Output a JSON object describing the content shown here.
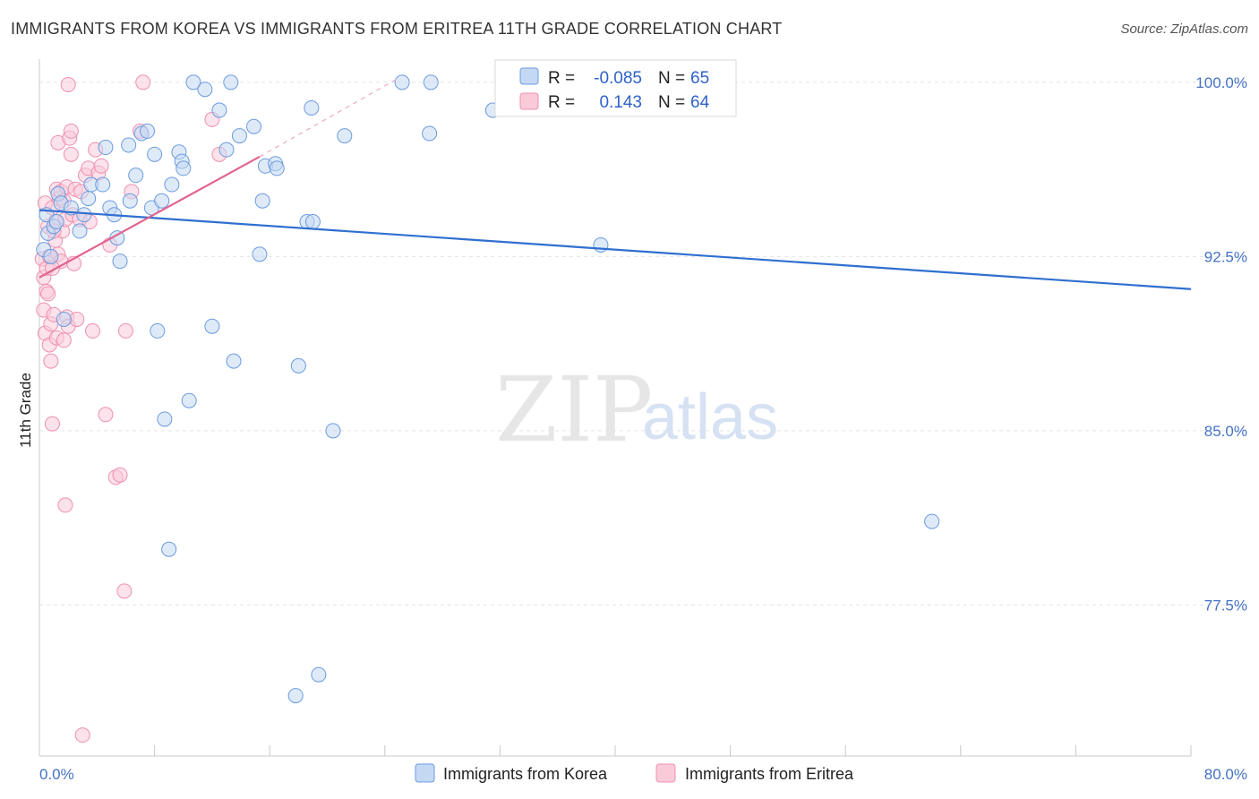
{
  "title": "IMMIGRANTS FROM KOREA VS IMMIGRANTS FROM ERITREA 11TH GRADE CORRELATION CHART",
  "source": "Source: ZipAtlas.com",
  "watermark": {
    "zip": "ZIP",
    "atlas": "atlas"
  },
  "legend": {
    "rows": [
      {
        "r_label": "R =",
        "r_value": "-0.085",
        "n_label": "N =",
        "n_value": "65",
        "color": "#a9c4ec"
      },
      {
        "r_label": "R =",
        "r_value": "0.143",
        "n_label": "N =",
        "n_value": "64",
        "color": "#f6b6c9"
      }
    ]
  },
  "bottom_legend": {
    "korea": "Immigrants from Korea",
    "eritrea": "Immigrants from Eritrea"
  },
  "chart_data": {
    "type": "scatter",
    "title": "IMMIGRANTS FROM KOREA VS IMMIGRANTS FROM ERITREA 11TH GRADE CORRELATION CHART",
    "xlabel": "",
    "ylabel": "11th Grade",
    "xlim": [
      0,
      80
    ],
    "ylim": [
      71,
      101
    ],
    "x_tick_labels": [
      "0.0%",
      "80.0%"
    ],
    "y_ticks": [
      77.5,
      85.0,
      92.5,
      100.0
    ],
    "y_tick_labels": [
      "77.5%",
      "85.0%",
      "92.5%",
      "100.0%"
    ],
    "grid": true,
    "legend_position": "top-center",
    "colors": {
      "korea": "#6a9be0",
      "korea_fill": "#c5d8f3",
      "eritrea": "#ef8fb0",
      "eritrea_fill": "#f9cbd9",
      "korea_line": "#2f6fd0",
      "eritrea_line": "#e0648e"
    },
    "series": [
      {
        "name": "Immigrants from Korea",
        "R": -0.085,
        "N": 65,
        "trend": {
          "x": [
            0,
            80
          ],
          "y": [
            94.5,
            91.1
          ]
        },
        "points": [
          [
            0.3,
            92.8
          ],
          [
            0.5,
            94.3
          ],
          [
            0.6,
            93.5
          ],
          [
            0.8,
            92.5
          ],
          [
            1.0,
            93.8
          ],
          [
            1.2,
            94.0
          ],
          [
            1.3,
            95.2
          ],
          [
            1.5,
            94.8
          ],
          [
            1.7,
            89.8
          ],
          [
            2.2,
            94.6
          ],
          [
            2.8,
            93.6
          ],
          [
            3.1,
            94.3
          ],
          [
            3.4,
            95.0
          ],
          [
            3.6,
            95.6
          ],
          [
            4.4,
            95.6
          ],
          [
            4.6,
            97.2
          ],
          [
            4.9,
            94.6
          ],
          [
            5.2,
            94.3
          ],
          [
            5.4,
            93.3
          ],
          [
            5.6,
            92.3
          ],
          [
            6.2,
            97.3
          ],
          [
            6.3,
            94.9
          ],
          [
            6.7,
            96.0
          ],
          [
            7.1,
            97.8
          ],
          [
            7.5,
            97.9
          ],
          [
            7.8,
            94.6
          ],
          [
            8.0,
            96.9
          ],
          [
            8.2,
            89.3
          ],
          [
            8.5,
            94.9
          ],
          [
            9.2,
            95.6
          ],
          [
            9.7,
            97.0
          ],
          [
            9.9,
            96.6
          ],
          [
            10.0,
            96.3
          ],
          [
            10.4,
            86.3
          ],
          [
            10.7,
            100.0
          ],
          [
            11.5,
            99.7
          ],
          [
            12.0,
            89.5
          ],
          [
            12.5,
            98.8
          ],
          [
            13.0,
            97.1
          ],
          [
            13.3,
            100.0
          ],
          [
            13.5,
            88.0
          ],
          [
            13.9,
            97.7
          ],
          [
            14.9,
            98.1
          ],
          [
            15.3,
            92.6
          ],
          [
            15.5,
            94.9
          ],
          [
            15.7,
            96.4
          ],
          [
            16.4,
            96.5
          ],
          [
            16.5,
            96.3
          ],
          [
            17.8,
            73.6
          ],
          [
            18.0,
            87.8
          ],
          [
            18.6,
            94.0
          ],
          [
            18.9,
            98.9
          ],
          [
            19.0,
            94.0
          ],
          [
            19.4,
            74.5
          ],
          [
            20.4,
            85.0
          ],
          [
            21.2,
            97.7
          ],
          [
            25.2,
            100.0
          ],
          [
            27.1,
            97.8
          ],
          [
            27.2,
            100.0
          ],
          [
            31.5,
            98.8
          ],
          [
            35.7,
            100.0
          ],
          [
            39.0,
            93.0
          ],
          [
            62.0,
            81.1
          ],
          [
            8.7,
            85.5
          ],
          [
            9.0,
            79.9
          ]
        ]
      },
      {
        "name": "Immigrants from Eritrea",
        "R": 0.143,
        "N": 64,
        "trend": {
          "x": [
            0,
            15.3
          ],
          "y": [
            91.6,
            96.8
          ]
        },
        "trend_extension": {
          "x": [
            15.3,
            25
          ],
          "y": [
            96.8,
            100.2
          ]
        },
        "points": [
          [
            0.2,
            92.4
          ],
          [
            0.3,
            91.6
          ],
          [
            0.3,
            90.2
          ],
          [
            0.4,
            89.2
          ],
          [
            0.4,
            94.8
          ],
          [
            0.5,
            92.0
          ],
          [
            0.5,
            91.0
          ],
          [
            0.6,
            93.8
          ],
          [
            0.6,
            90.9
          ],
          [
            0.7,
            88.7
          ],
          [
            0.7,
            92.5
          ],
          [
            0.8,
            88.0
          ],
          [
            0.8,
            89.6
          ],
          [
            0.9,
            94.6
          ],
          [
            0.9,
            85.3
          ],
          [
            1.0,
            90.0
          ],
          [
            1.1,
            94.0
          ],
          [
            1.1,
            93.2
          ],
          [
            1.2,
            95.4
          ],
          [
            1.2,
            89.0
          ],
          [
            1.3,
            92.6
          ],
          [
            1.3,
            97.4
          ],
          [
            1.4,
            95.0
          ],
          [
            1.5,
            92.3
          ],
          [
            1.5,
            95.3
          ],
          [
            1.6,
            93.6
          ],
          [
            1.7,
            94.9
          ],
          [
            1.7,
            88.9
          ],
          [
            1.8,
            94.1
          ],
          [
            1.8,
            81.8
          ],
          [
            1.9,
            95.5
          ],
          [
            1.9,
            89.9
          ],
          [
            2.0,
            89.5
          ],
          [
            2.0,
            99.9
          ],
          [
            2.1,
            97.6
          ],
          [
            2.2,
            96.9
          ],
          [
            2.2,
            97.9
          ],
          [
            2.3,
            94.3
          ],
          [
            2.5,
            95.4
          ],
          [
            2.6,
            89.8
          ],
          [
            2.8,
            94.1
          ],
          [
            2.9,
            95.3
          ],
          [
            3.0,
            71.9
          ],
          [
            3.2,
            96.0
          ],
          [
            3.4,
            96.3
          ],
          [
            3.5,
            94.0
          ],
          [
            3.7,
            89.3
          ],
          [
            3.9,
            97.1
          ],
          [
            4.1,
            96.1
          ],
          [
            4.3,
            96.4
          ],
          [
            4.6,
            85.7
          ],
          [
            4.9,
            93.0
          ],
          [
            5.3,
            83.0
          ],
          [
            5.6,
            83.1
          ],
          [
            5.9,
            78.1
          ],
          [
            6.0,
            89.3
          ],
          [
            6.4,
            95.3
          ],
          [
            7.0,
            97.9
          ],
          [
            7.2,
            100.0
          ],
          [
            12.0,
            98.4
          ],
          [
            12.5,
            96.9
          ],
          [
            2.4,
            92.2
          ],
          [
            1.0,
            93.6
          ],
          [
            0.9,
            92.0
          ]
        ]
      }
    ]
  }
}
